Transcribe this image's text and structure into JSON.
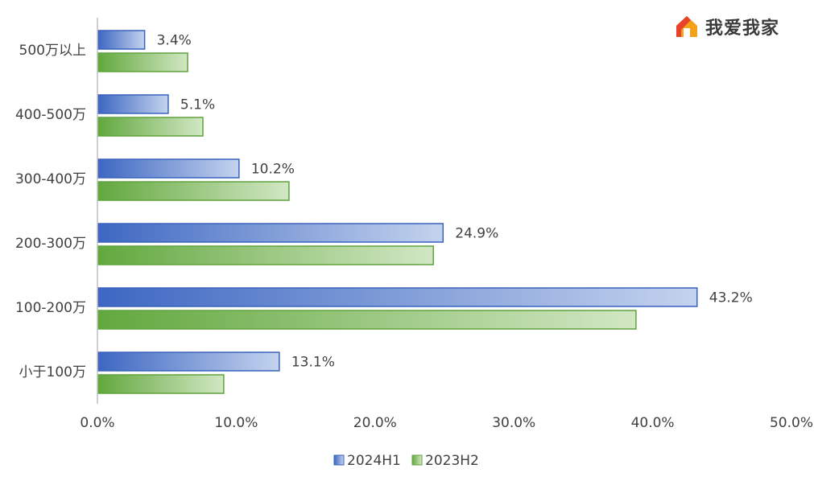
{
  "logo": {
    "text": "我爱我家",
    "icon": "house-logo-icon"
  },
  "chart_data": {
    "type": "bar",
    "orientation": "horizontal",
    "categories": [
      "500万以上",
      "400-500万",
      "300-400万",
      "200-300万",
      "100-200万",
      "小于100万"
    ],
    "series": [
      {
        "name": "2024H1",
        "values": [
          3.4,
          5.1,
          10.2,
          24.9,
          43.2,
          13.1
        ],
        "color": "#4472c4",
        "labels_shown": true
      },
      {
        "name": "2023H2",
        "values": [
          6.5,
          7.6,
          13.8,
          24.2,
          38.8,
          9.1
        ],
        "color": "#70ad47",
        "labels_shown": false
      }
    ],
    "xlim": [
      0,
      50
    ],
    "xticks": [
      "0.0%",
      "10.0%",
      "20.0%",
      "30.0%",
      "40.0%",
      "50.0%"
    ],
    "value_suffix": "%",
    "grid": false,
    "legend_position": "bottom"
  }
}
